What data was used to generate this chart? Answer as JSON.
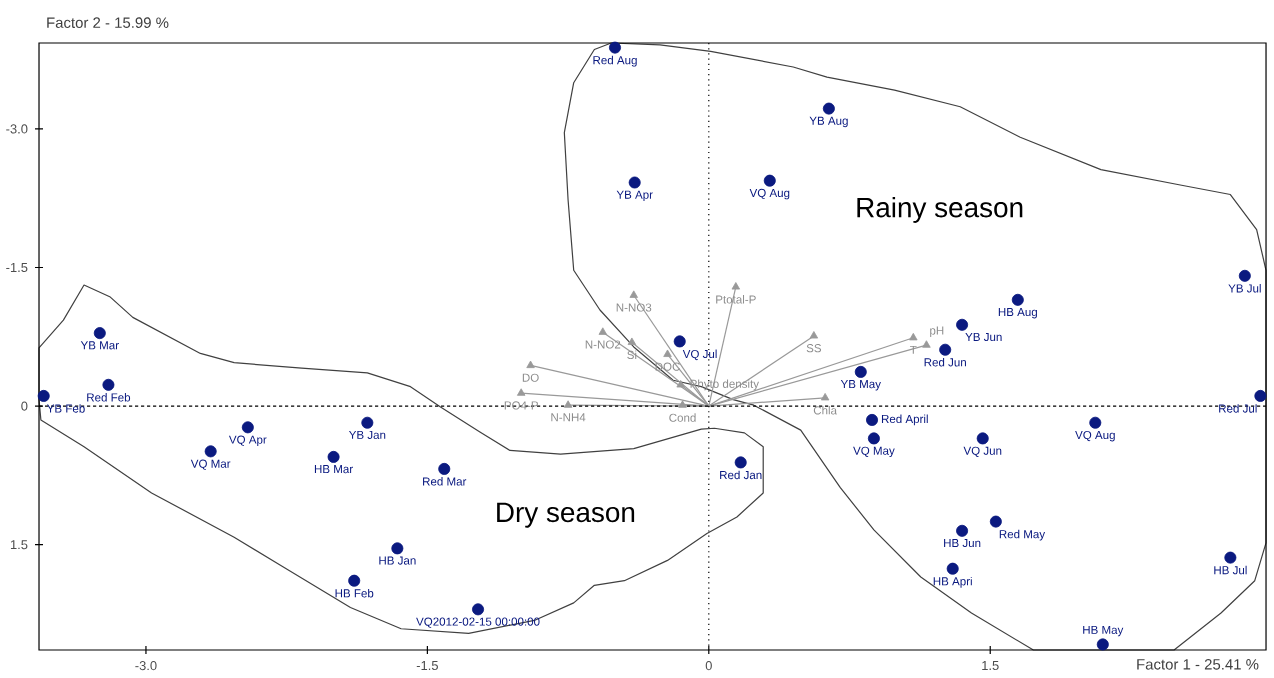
{
  "chart_data": {
    "type": "scatter",
    "xlabel": "Factor 1  -  25.41 %",
    "ylabel": "Factor 2  -  15.99 %",
    "xlim": [
      -3.57,
      2.97
    ],
    "ylim": [
      2.64,
      -3.93
    ],
    "xticks": [
      {
        "value": -3.0,
        "label": "-3.0"
      },
      {
        "value": -1.5,
        "label": "-1.5"
      },
      0,
      {
        "value": 1.5,
        "label": "1.5"
      }
    ],
    "yticks": [
      {
        "value": -3.0,
        "label": "-3.0"
      },
      {
        "value": -1.5,
        "label": "-1.5"
      },
      0,
      {
        "value": 1.5,
        "label": "1.5"
      }
    ],
    "marker": "circle",
    "ref_lines": [
      {
        "axis": "x",
        "value": 0,
        "line_style": "dotted",
        "color": "#000000"
      },
      {
        "axis": "y",
        "value": 0,
        "line_style": "dashed",
        "color": "#000000"
      }
    ],
    "series": [
      {
        "color": "#0b1a80",
        "x": [
          -3.545,
          -3.246,
          -3.2,
          -2.655,
          -2.457,
          -2.0,
          -1.82,
          -1.66,
          -1.89,
          -1.41,
          -1.23,
          0.17,
          -0.155,
          -0.5,
          -0.395,
          0.325,
          0.64,
          2.857,
          1.647,
          0.81,
          1.35,
          1.26,
          2.94,
          0.87,
          0.88,
          1.46,
          2.06,
          1.35,
          1.53,
          1.3,
          2.78,
          2.1
        ],
        "values": [
          -0.11,
          -0.79,
          -0.23,
          0.49,
          0.23,
          0.55,
          0.18,
          1.54,
          1.89,
          0.68,
          2.2,
          0.61,
          -0.7,
          -3.88,
          -2.42,
          -2.44,
          -3.22,
          -1.41,
          -1.15,
          -0.37,
          -0.88,
          -0.61,
          -0.11,
          0.15,
          0.35,
          0.35,
          0.18,
          1.35,
          1.25,
          1.76,
          1.64,
          2.58
        ]
      },
      {
        "type": "scatter",
        "marker": "triangle",
        "color": "#999999",
        "x": [
          -0.4,
          0.144,
          -0.565,
          -0.41,
          -0.22,
          0.56,
          1.09,
          1.16,
          -0.95,
          -0.15,
          -1.0,
          -0.75,
          -0.14,
          0.62
        ],
        "values": [
          -1.2,
          -1.29,
          -0.8,
          -0.69,
          -0.56,
          -0.76,
          -0.74,
          -0.66,
          -0.44,
          -0.23,
          -0.14,
          -0.01,
          -0.01,
          -0.09
        ]
      }
    ],
    "annotations": [
      {
        "text": "YB Feb",
        "x": -3.545,
        "y": -0.11
      },
      {
        "text": "YB Mar",
        "x": -3.246,
        "y": -0.79
      },
      {
        "text": "Red Feb",
        "x": -3.2,
        "y": -0.23
      },
      {
        "text": "VQ Mar",
        "x": -2.655,
        "y": 0.49
      },
      {
        "text": "VQ Apr",
        "x": -2.457,
        "y": 0.23
      },
      {
        "text": "HB Mar",
        "x": -2.0,
        "y": 0.55
      },
      {
        "text": "YB Jan",
        "x": -1.82,
        "y": 0.18
      },
      {
        "text": "HB Jan",
        "x": -1.66,
        "y": 1.54
      },
      {
        "text": "HB Feb",
        "x": -1.89,
        "y": 1.89
      },
      {
        "text": "Red Mar",
        "x": -1.41,
        "y": 0.68
      },
      {
        "text": "VQ2012-02-15 00:00:00",
        "x": -1.23,
        "y": 2.2
      },
      {
        "text": "Red Jan",
        "x": 0.17,
        "y": 0.61
      },
      {
        "text": "VQ Jul",
        "x": -0.155,
        "y": -0.7
      },
      {
        "text": "Red Aug",
        "x": -0.5,
        "y": -3.88
      },
      {
        "text": "YB Apr",
        "x": -0.395,
        "y": -2.42
      },
      {
        "text": "VQ Aug",
        "x": 0.325,
        "y": -2.44
      },
      {
        "text": "YB Aug",
        "x": 0.64,
        "y": -3.22
      },
      {
        "text": "YB Jul",
        "x": 2.857,
        "y": -1.41
      },
      {
        "text": "HB Aug",
        "x": 1.647,
        "y": -1.15
      },
      {
        "text": "YB May",
        "x": 0.81,
        "y": -0.37
      },
      {
        "text": "YB Jun",
        "x": 1.35,
        "y": -0.88
      },
      {
        "text": "Red Jun",
        "x": 1.26,
        "y": -0.61
      },
      {
        "text": "Red Jul",
        "x": 2.94,
        "y": -0.11
      },
      {
        "text": "Red April",
        "x": 0.87,
        "y": 0.15
      },
      {
        "text": "VQ May",
        "x": 0.88,
        "y": 0.35
      },
      {
        "text": "VQ Jun",
        "x": 1.46,
        "y": 0.35
      },
      {
        "text": "VQ Aug",
        "x": 2.06,
        "y": 0.18
      },
      {
        "text": "HB Jun",
        "x": 1.35,
        "y": 1.35
      },
      {
        "text": "Red May",
        "x": 1.53,
        "y": 1.25
      },
      {
        "text": "HB Apri",
        "x": 1.3,
        "y": 1.76
      },
      {
        "text": "HB Jul",
        "x": 2.78,
        "y": 1.64
      },
      {
        "text": "HB May",
        "x": 2.1,
        "y": 2.58
      },
      {
        "text": "N-NO3",
        "x": -0.4,
        "y": -1.2
      },
      {
        "text": "Ptotal-P",
        "x": 0.144,
        "y": -1.29
      },
      {
        "text": "N-NO2",
        "x": -0.565,
        "y": -0.8
      },
      {
        "text": "Si",
        "x": -0.41,
        "y": -0.69
      },
      {
        "text": "DOC",
        "x": -0.22,
        "y": -0.56
      },
      {
        "text": "SS",
        "x": 0.56,
        "y": -0.76
      },
      {
        "text": "T",
        "x": 1.09,
        "y": -0.74
      },
      {
        "text": "pH",
        "x": 1.16,
        "y": -0.66
      },
      {
        "text": "DO",
        "x": -0.95,
        "y": -0.44
      },
      {
        "text": "Phyto density",
        "x": -0.15,
        "y": -0.23
      },
      {
        "text": "PO4-P",
        "x": -1.0,
        "y": -0.14
      },
      {
        "text": "N-NH4",
        "x": -0.75,
        "y": -0.01
      },
      {
        "text": "Cond",
        "x": -0.14,
        "y": -0.01
      },
      {
        "text": "Chla",
        "x": 0.62,
        "y": -0.09
      },
      "Dry season",
      "Rainy season"
    ]
  }
}
